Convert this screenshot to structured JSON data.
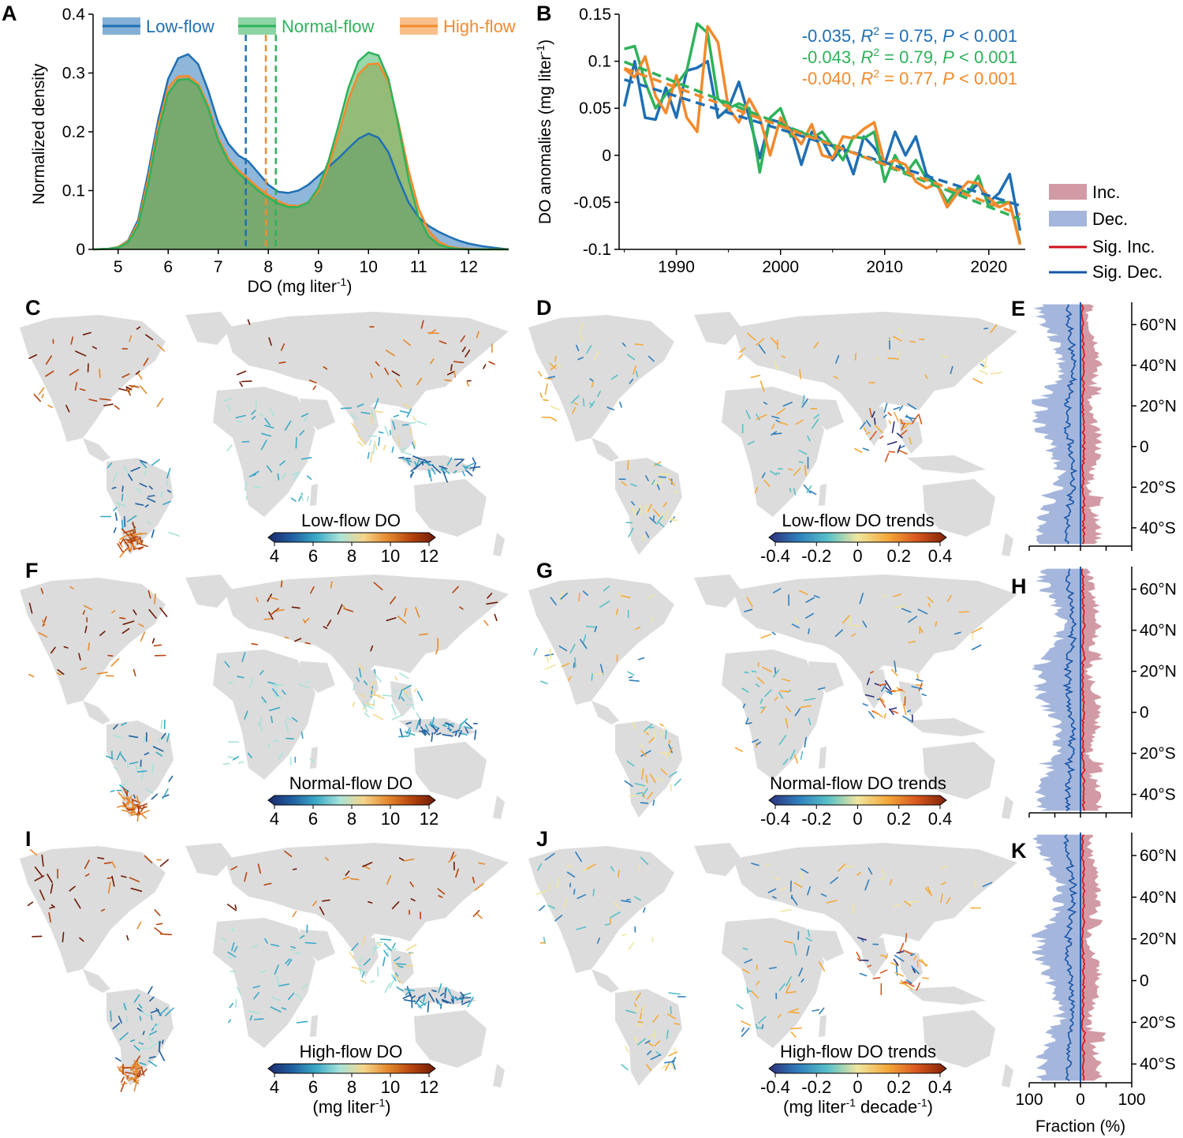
{
  "colors": {
    "low": "#1f6fb4",
    "normal": "#2fb25a",
    "high": "#f28a2c",
    "inc": "#d29aa4",
    "dec": "#a5b6dc",
    "sig_inc": "#d0101a",
    "sig_dec": "#1656a8",
    "land": "#dcdcdc",
    "do_scale": [
      "#1b2a6b",
      "#1f5fa0",
      "#3aa9c6",
      "#a8e3da",
      "#f5d58a",
      "#e58a2e",
      "#b6440e",
      "#6e1a05"
    ],
    "trend_scale": [
      "#2d2f7a",
      "#2f7fbd",
      "#58c1c8",
      "#f0e6a0",
      "#f4a93a",
      "#d8571e",
      "#7d2006"
    ]
  },
  "chart_data": [
    {
      "panel": "A",
      "type": "area",
      "xlabel": "DO (mg liter",
      "xlabel_sup": "-1",
      "xlabel_close": ")",
      "ylabel": "Normalized density",
      "xlim": [
        4.5,
        12.8
      ],
      "ylim": [
        0,
        0.4
      ],
      "xticks": [
        5,
        6,
        7,
        8,
        9,
        10,
        11,
        12
      ],
      "yticks": [
        {
          "v": 0,
          "t": "0"
        },
        {
          "v": 0.1,
          "t": "0.1"
        },
        {
          "v": 0.2,
          "t": "0.2"
        },
        {
          "v": 0.3,
          "t": "0.3"
        },
        {
          "v": 0.4,
          "t": "0.4"
        }
      ],
      "x": [
        4.5,
        4.8,
        5.0,
        5.2,
        5.4,
        5.6,
        5.8,
        6.0,
        6.2,
        6.4,
        6.6,
        6.8,
        7.0,
        7.2,
        7.4,
        7.6,
        7.8,
        8.0,
        8.2,
        8.4,
        8.6,
        8.8,
        9.0,
        9.2,
        9.4,
        9.6,
        9.8,
        10.0,
        10.2,
        10.4,
        10.6,
        10.8,
        11.0,
        11.2,
        11.4,
        11.6,
        11.8,
        12.0,
        12.3,
        12.8
      ],
      "series": [
        {
          "name": "Low-flow",
          "color_key": "low",
          "median": 7.55,
          "values": [
            0,
            0.001,
            0.004,
            0.015,
            0.05,
            0.13,
            0.22,
            0.29,
            0.325,
            0.332,
            0.315,
            0.27,
            0.215,
            0.18,
            0.16,
            0.15,
            0.13,
            0.11,
            0.098,
            0.096,
            0.1,
            0.11,
            0.125,
            0.14,
            0.155,
            0.172,
            0.188,
            0.197,
            0.19,
            0.165,
            0.12,
            0.08,
            0.055,
            0.04,
            0.03,
            0.022,
            0.015,
            0.01,
            0.005,
            0
          ]
        },
        {
          "name": "Normal-flow",
          "color_key": "normal",
          "median": 8.15,
          "values": [
            0,
            0.001,
            0.003,
            0.012,
            0.04,
            0.11,
            0.2,
            0.265,
            0.288,
            0.29,
            0.278,
            0.24,
            0.185,
            0.15,
            0.13,
            0.115,
            0.1,
            0.088,
            0.078,
            0.072,
            0.072,
            0.08,
            0.105,
            0.15,
            0.21,
            0.275,
            0.32,
            0.335,
            0.33,
            0.29,
            0.21,
            0.12,
            0.055,
            0.022,
            0.008,
            0.003,
            0.001,
            0,
            0,
            0
          ]
        },
        {
          "name": "High-flow",
          "color_key": "high",
          "median": 7.95,
          "values": [
            0,
            0.001,
            0.004,
            0.014,
            0.045,
            0.12,
            0.21,
            0.275,
            0.294,
            0.295,
            0.282,
            0.245,
            0.19,
            0.155,
            0.135,
            0.12,
            0.105,
            0.092,
            0.082,
            0.075,
            0.074,
            0.08,
            0.1,
            0.14,
            0.195,
            0.255,
            0.298,
            0.315,
            0.316,
            0.285,
            0.215,
            0.135,
            0.07,
            0.032,
            0.013,
            0.005,
            0.002,
            0.001,
            0,
            0
          ]
        }
      ]
    },
    {
      "panel": "B",
      "type": "line",
      "ylabel": "DO anomalies (mg liter",
      "ylabel_sup": "-1",
      "ylabel_close": ")",
      "xlim": [
        1984.5,
        2023.5
      ],
      "ylim": [
        -0.1,
        0.15
      ],
      "xticks": [
        1990,
        2000,
        2010,
        2020
      ],
      "yticks": [
        {
          "v": -0.1,
          "t": "-0.1"
        },
        {
          "v": -0.05,
          "t": "-0.05"
        },
        {
          "v": 0,
          "t": "0"
        },
        {
          "v": 0.05,
          "t": "0.05"
        },
        {
          "v": 0.1,
          "t": "0.1"
        },
        {
          "v": 0.15,
          "t": "0.15"
        }
      ],
      "x": [
        1985,
        1986,
        1987,
        1988,
        1989,
        1990,
        1991,
        1992,
        1993,
        1994,
        1995,
        1996,
        1997,
        1998,
        1999,
        2000,
        2001,
        2002,
        2003,
        2004,
        2005,
        2006,
        2007,
        2008,
        2009,
        2010,
        2011,
        2012,
        2013,
        2014,
        2015,
        2016,
        2017,
        2018,
        2019,
        2020,
        2021,
        2022,
        2023
      ],
      "series": [
        {
          "name": "Low-flow",
          "color_key": "low",
          "trend": [
            0.0805,
            -0.0535
          ],
          "values": [
            0.052,
            0.1,
            0.04,
            0.038,
            0.072,
            0.04,
            0.09,
            0.093,
            0.1,
            0.04,
            0.05,
            0.078,
            0.04,
            -0.003,
            0.038,
            0.035,
            0.028,
            -0.01,
            0.025,
            0.016,
            -0.005,
            0.01,
            -0.02,
            0.02,
            0.008,
            -0.01,
            0.025,
            0.0,
            0.02,
            -0.02,
            -0.03,
            -0.055,
            -0.04,
            -0.04,
            -0.03,
            -0.05,
            -0.04,
            -0.02,
            -0.08
          ]
        },
        {
          "name": "Normal-flow",
          "color_key": "normal",
          "trend": [
            0.0995,
            -0.068
          ],
          "values": [
            0.113,
            0.116,
            0.078,
            0.05,
            0.065,
            0.075,
            0.09,
            0.14,
            0.13,
            0.06,
            0.05,
            0.055,
            0.05,
            -0.018,
            0.04,
            0.05,
            0.02,
            0.025,
            0.018,
            0.025,
            0.01,
            -0.005,
            0.02,
            0.018,
            0.025,
            -0.028,
            0.0,
            -0.02,
            -0.005,
            -0.025,
            -0.03,
            -0.05,
            -0.035,
            -0.04,
            -0.022,
            -0.055,
            -0.05,
            -0.05,
            -0.093
          ]
        },
        {
          "name": "High-flow",
          "color_key": "high",
          "trend": [
            0.0925,
            -0.063
          ],
          "values": [
            0.092,
            0.083,
            0.105,
            0.063,
            0.045,
            0.085,
            0.04,
            0.025,
            0.137,
            0.12,
            0.05,
            0.035,
            0.06,
            0.04,
            0.0,
            0.04,
            0.025,
            0.012,
            0.033,
            0.0,
            -0.003,
            0.02,
            0.018,
            0.028,
            0.035,
            -0.01,
            -0.005,
            -0.01,
            -0.028,
            -0.035,
            -0.03,
            -0.055,
            -0.04,
            -0.028,
            -0.03,
            -0.045,
            -0.055,
            -0.05,
            -0.095
          ]
        }
      ],
      "annotations": [
        {
          "color_key": "low",
          "slope": "-0.035, ",
          "r2": "0.75",
          "p": "0.001"
        },
        {
          "color_key": "normal",
          "slope": "-0.043, ",
          "r2": "0.79",
          "p": "0.001"
        },
        {
          "color_key": "high",
          "slope": "-0.040, ",
          "r2": "0.77",
          "p": "0.001"
        }
      ]
    },
    {
      "panel": "E/H/K",
      "type": "area",
      "xlabel": "Fraction (%)",
      "xticks": [
        {
          "v": -100,
          "t": "100"
        },
        {
          "v": 0,
          "t": "0"
        },
        {
          "v": 100,
          "t": "100"
        }
      ],
      "yticks": [
        {
          "v": 60,
          "t": "60°N"
        },
        {
          "v": 40,
          "t": "40°N"
        },
        {
          "v": 20,
          "t": "20°N"
        },
        {
          "v": 0,
          "t": "0"
        },
        {
          "v": -20,
          "t": "20°S"
        },
        {
          "v": -40,
          "t": "40°S"
        }
      ],
      "ylim": [
        -49,
        71
      ],
      "legend": [
        "Inc.",
        "Dec.",
        "Sig. Inc.",
        "Sig. Dec."
      ]
    }
  ],
  "panels": {
    "A": "A",
    "B": "B",
    "C": "C",
    "D": "D",
    "E": "E",
    "F": "F",
    "G": "G",
    "H": "H",
    "I": "I",
    "J": "J",
    "K": "K"
  },
  "legend_a": [
    "Low-flow",
    "Normal-flow",
    "High-flow"
  ],
  "maps": {
    "C": "Low-flow DO",
    "D": "Low-flow DO trends",
    "F": "Normal-flow DO",
    "G": "Normal-flow DO trends",
    "I": "High-flow DO",
    "J": "High-flow DO trends"
  },
  "colorbar_do": {
    "ticks": [
      "4",
      "6",
      "8",
      "10",
      "12"
    ],
    "unit": "(mg liter",
    "unit_sup": "-1",
    "unit_close": ")"
  },
  "colorbar_trend": {
    "ticks": [
      "-0.4",
      "-0.2",
      "0",
      "0.2",
      "0.4"
    ],
    "unit": "(mg liter",
    "unit_sup": "-1",
    "unit_mid": " decade",
    "unit_sup2": "-1",
    "unit_close": ")"
  },
  "stat_text": {
    "r": "R",
    "p": "P",
    "two": "2",
    "eq": " = ",
    "comma": ", ",
    "lt": " < "
  }
}
